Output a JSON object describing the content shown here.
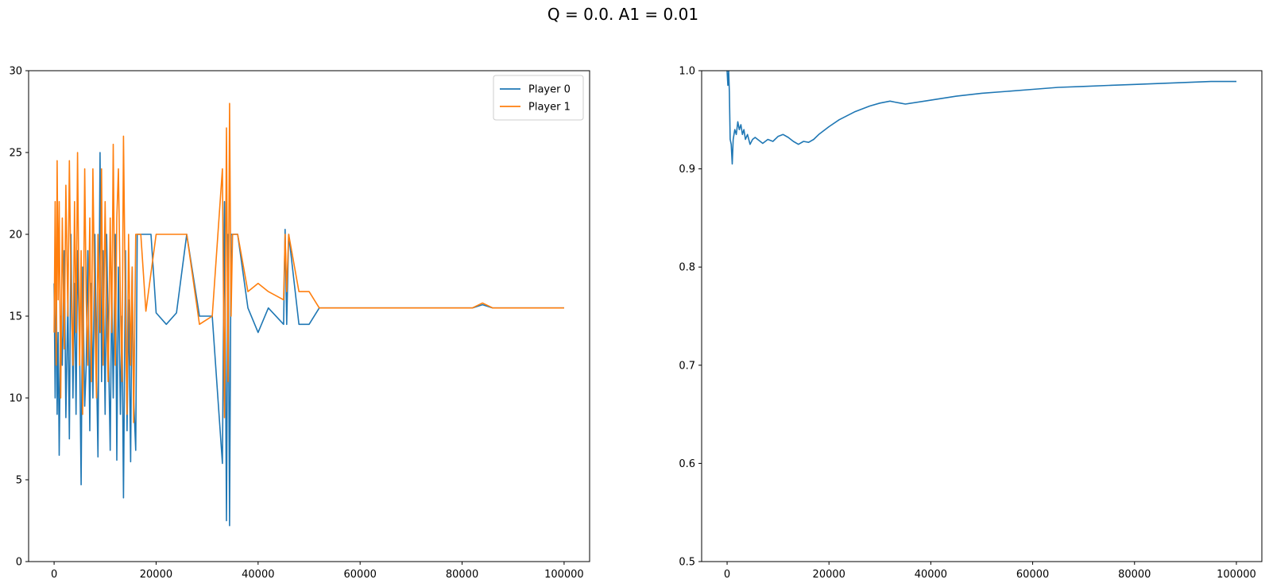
{
  "figure": {
    "suptitle": "Q = 0.0. A1 = 0.01"
  },
  "chart_data": [
    {
      "type": "line",
      "title": "",
      "xlabel": "",
      "ylabel": "",
      "xlim": [
        -5000,
        105000
      ],
      "ylim": [
        0,
        30
      ],
      "xticks": [
        0,
        20000,
        40000,
        60000,
        80000,
        100000
      ],
      "xtick_labels": [
        "0",
        "20000",
        "40000",
        "60000",
        "80000",
        "100000"
      ],
      "yticks": [
        0,
        5,
        10,
        15,
        20,
        25,
        30
      ],
      "ytick_labels": [
        "0",
        "5",
        "10",
        "15",
        "20",
        "25",
        "30"
      ],
      "grid": false,
      "legend_position": "top-right",
      "series": [
        {
          "name": "Player 0",
          "color": "#1f77b4",
          "x": [
            0,
            200,
            400,
            600,
            800,
            1000,
            1300,
            1600,
            2000,
            2300,
            2700,
            3000,
            3300,
            3700,
            4000,
            4300,
            4600,
            5000,
            5300,
            5600,
            6000,
            6300,
            6600,
            7000,
            7300,
            7600,
            8000,
            8300,
            8600,
            9000,
            9300,
            9600,
            10000,
            10300,
            10600,
            11000,
            11300,
            11600,
            12000,
            12300,
            12600,
            13000,
            13300,
            13600,
            14000,
            14300,
            14600,
            15000,
            15300,
            15600,
            16000,
            16300,
            16600,
            17000,
            19000,
            20000,
            22000,
            24000,
            26000,
            28500,
            31000,
            33000,
            33400,
            33800,
            34100,
            34400,
            34700,
            35000,
            35500,
            36000,
            38000,
            40000,
            42000,
            45000,
            45300,
            45600,
            46000,
            48000,
            50000,
            52000,
            55000,
            57000,
            58000,
            60000,
            62000,
            64000,
            66000,
            68000,
            70000,
            72000,
            74000,
            76000,
            78000,
            80000,
            82000,
            84000,
            86000,
            88000,
            90000,
            92000,
            94000,
            96000,
            98000,
            100000
          ],
          "y": [
            17,
            10,
            19,
            9,
            14,
            6.5,
            15,
            12,
            19,
            8.8,
            16,
            7.5,
            20,
            10,
            17,
            9,
            19,
            13,
            4.7,
            18,
            9.5,
            12,
            19,
            8,
            17,
            10,
            20,
            12,
            6.4,
            25,
            11,
            19,
            9,
            20,
            14,
            6.8,
            17,
            10,
            20,
            6.2,
            18,
            9,
            15,
            3.9,
            19,
            8,
            16,
            6.1,
            18,
            10,
            6.8,
            20,
            20,
            20,
            20,
            15.2,
            14.5,
            15.2,
            20,
            15,
            15,
            6,
            22,
            2.5,
            20,
            2.2,
            20,
            20,
            20,
            20,
            15.5,
            14,
            15.5,
            14.5,
            20.3,
            14.5,
            20,
            14.5,
            14.5,
            15.5,
            15.5,
            15.5,
            15.5,
            15.5,
            15.5,
            15.5,
            15.5,
            15.5,
            15.5,
            15.5,
            15.5,
            15.5,
            15.5,
            15.5,
            15.5,
            15.7,
            15.5,
            15.5,
            15.5,
            15.5,
            15.5,
            15.5,
            15.5,
            15.5
          ]
        },
        {
          "name": "Player 1",
          "color": "#ff7f0e",
          "x": [
            0,
            200,
            400,
            600,
            800,
            1000,
            1300,
            1600,
            2000,
            2300,
            2700,
            3000,
            3300,
            3700,
            4000,
            4300,
            4600,
            5000,
            5300,
            5600,
            6000,
            6300,
            6600,
            7000,
            7300,
            7600,
            8000,
            8300,
            8600,
            9000,
            9300,
            9600,
            10000,
            10300,
            10600,
            11000,
            11300,
            11600,
            12000,
            12300,
            12600,
            13000,
            13300,
            13600,
            14000,
            14300,
            14600,
            15000,
            15300,
            15600,
            16000,
            16300,
            16600,
            17000,
            18000,
            20000,
            22000,
            24000,
            26000,
            28500,
            31000,
            33000,
            33400,
            33800,
            34100,
            34400,
            34700,
            35000,
            35500,
            36000,
            38000,
            40000,
            42000,
            45000,
            45300,
            45600,
            46000,
            48000,
            50000,
            52000,
            55000,
            57000,
            58000,
            60000,
            62000,
            64000,
            66000,
            68000,
            70000,
            72000,
            74000,
            76000,
            78000,
            80000,
            82000,
            84000,
            86000,
            88000,
            90000,
            92000,
            94000,
            96000,
            98000,
            100000
          ],
          "y": [
            14,
            22,
            12,
            24.5,
            16,
            22,
            10,
            21,
            13,
            23,
            15,
            24.5,
            17,
            12,
            22,
            14,
            25,
            12,
            19,
            9,
            24,
            16,
            12,
            21,
            11,
            24,
            15,
            10,
            20,
            14,
            24,
            12,
            22,
            15,
            11,
            21,
            14,
            25.5,
            12,
            21,
            24,
            16,
            11,
            26,
            15,
            9,
            20,
            12,
            18,
            8.5,
            20,
            20,
            20,
            20,
            15.3,
            20,
            20,
            20,
            20,
            14.5,
            15,
            24,
            8.8,
            26.5,
            11,
            28,
            15,
            20,
            20,
            20,
            16.5,
            17,
            16.5,
            16,
            20,
            16.5,
            20,
            16.5,
            16.5,
            15.5,
            15.5,
            15.5,
            15.5,
            15.5,
            15.5,
            15.5,
            15.5,
            15.5,
            15.5,
            15.5,
            15.5,
            15.5,
            15.5,
            15.5,
            15.5,
            15.8,
            15.5,
            15.5,
            15.5,
            15.5,
            15.5,
            15.5,
            15.5,
            15.5
          ]
        }
      ]
    },
    {
      "type": "line",
      "title": "",
      "xlabel": "",
      "ylabel": "",
      "xlim": [
        -5000,
        105000
      ],
      "ylim": [
        0.5,
        1.0
      ],
      "xticks": [
        0,
        20000,
        40000,
        60000,
        80000,
        100000
      ],
      "xtick_labels": [
        "0",
        "20000",
        "40000",
        "60000",
        "80000",
        "100000"
      ],
      "yticks": [
        0.5,
        0.6,
        0.7,
        0.8,
        0.9,
        1.0
      ],
      "ytick_labels": [
        "0.5",
        "0.6",
        "0.7",
        "0.8",
        "0.9",
        "1.0"
      ],
      "grid": false,
      "series": [
        {
          "color": "#1f77b4",
          "x": [
            0,
            150,
            300,
            450,
            600,
            800,
            1000,
            1200,
            1500,
            1800,
            2100,
            2400,
            2700,
            3000,
            3300,
            3600,
            4000,
            4500,
            5000,
            5500,
            6000,
            7000,
            8000,
            9000,
            10000,
            11000,
            12000,
            13000,
            14000,
            15000,
            16000,
            17000,
            18000,
            20000,
            22000,
            25000,
            28000,
            30000,
            32000,
            33000,
            34000,
            35000,
            40000,
            45000,
            50000,
            55000,
            60000,
            65000,
            70000,
            75000,
            80000,
            85000,
            90000,
            95000,
            100000
          ],
          "y": [
            1.0,
            0.985,
            1.0,
            0.978,
            0.93,
            0.925,
            0.905,
            0.93,
            0.94,
            0.935,
            0.948,
            0.94,
            0.945,
            0.935,
            0.94,
            0.93,
            0.935,
            0.925,
            0.93,
            0.932,
            0.93,
            0.926,
            0.93,
            0.928,
            0.933,
            0.935,
            0.932,
            0.928,
            0.925,
            0.928,
            0.927,
            0.93,
            0.935,
            0.943,
            0.95,
            0.958,
            0.964,
            0.967,
            0.969,
            0.968,
            0.967,
            0.966,
            0.97,
            0.974,
            0.977,
            0.979,
            0.981,
            0.983,
            0.984,
            0.985,
            0.986,
            0.987,
            0.988,
            0.989,
            0.989
          ]
        }
      ]
    }
  ]
}
